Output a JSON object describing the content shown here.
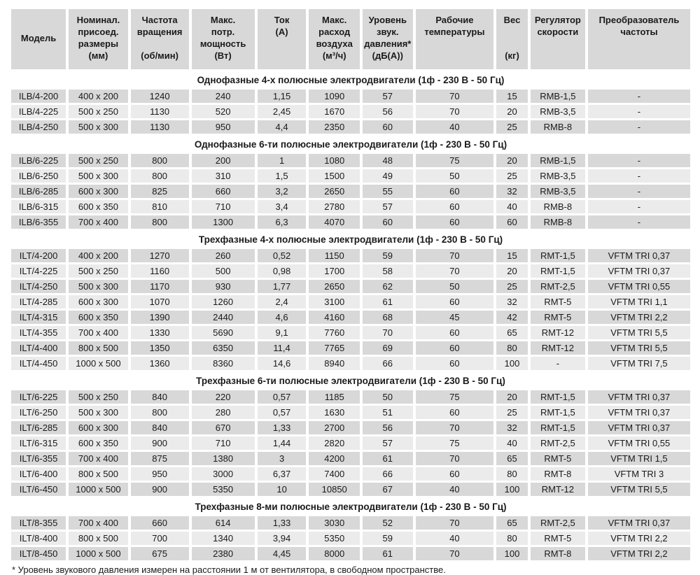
{
  "colors": {
    "header_bg": "#d8d8d8",
    "row_odd_bg": "#d8d8d8",
    "row_even_bg": "#ebebeb",
    "section_bg": "#ffffff",
    "text": "#1a1a1a"
  },
  "table": {
    "columns": [
      {
        "id": "model",
        "header": "Модель"
      },
      {
        "id": "dims",
        "header": "Номинал.\nприсоед.\nразмеры\n(мм)"
      },
      {
        "id": "rpm",
        "header": "Частота\nвращения\n\n(об/мин)"
      },
      {
        "id": "power",
        "header": "Макс.\nпотр.\nмощность\n(Вт)"
      },
      {
        "id": "current",
        "header": "Ток\n(А)"
      },
      {
        "id": "airflow",
        "header": "Макс.\nрасход\nвоздуха\n(м³/ч)"
      },
      {
        "id": "sound",
        "header": "Уровень\nзвук.\nдавления*\n(дБ(А))"
      },
      {
        "id": "temp",
        "header": "Рабочие\nтемпературы"
      },
      {
        "id": "weight",
        "header": "Вес\n\n\n(кг)"
      },
      {
        "id": "regulator",
        "header": "Регулятор\nскорости"
      },
      {
        "id": "converter",
        "header": "Преобразователь\nчастоты"
      }
    ],
    "sections": [
      {
        "title": "Однофазные 4-х полюсные электродвигатели (1ф - 230 В - 50 Гц)",
        "rows": [
          [
            "ILB/4-200",
            "400 x 200",
            "1240",
            "240",
            "1,15",
            "1090",
            "57",
            "70",
            "15",
            "RMB-1,5",
            "-"
          ],
          [
            "ILB/4-225",
            "500 x 250",
            "1130",
            "520",
            "2,45",
            "1670",
            "56",
            "70",
            "20",
            "RMB-3,5",
            "-"
          ],
          [
            "ILB/4-250",
            "500 x 300",
            "1130",
            "950",
            "4,4",
            "2350",
            "60",
            "40",
            "25",
            "RMB-8",
            "-"
          ]
        ]
      },
      {
        "title": "Однофазные 6-ти полюсные электродвигатели (1ф - 230 В - 50 Гц)",
        "rows": [
          [
            "ILB/6-225",
            "500 x 250",
            "800",
            "200",
            "1",
            "1080",
            "48",
            "75",
            "20",
            "RMB-1,5",
            "-"
          ],
          [
            "ILB/6-250",
            "500 x 300",
            "800",
            "310",
            "1,5",
            "1500",
            "49",
            "50",
            "25",
            "RMB-3,5",
            "-"
          ],
          [
            "ILB/6-285",
            "600 x 300",
            "825",
            "660",
            "3,2",
            "2650",
            "55",
            "60",
            "32",
            "RMB-3,5",
            "-"
          ],
          [
            "ILB/6-315",
            "600 x 350",
            "810",
            "710",
            "3,4",
            "2780",
            "57",
            "60",
            "40",
            "RMB-8",
            "-"
          ],
          [
            "ILB/6-355",
            "700 x 400",
            "800",
            "1300",
            "6,3",
            "4070",
            "60",
            "60",
            "60",
            "RMB-8",
            "-"
          ]
        ]
      },
      {
        "title": "Трехфазные 4-х полюсные электродвигатели (1ф - 230 В - 50 Гц)",
        "rows": [
          [
            "ILT/4-200",
            "400 x 200",
            "1270",
            "260",
            "0,52",
            "1150",
            "59",
            "70",
            "15",
            "RMT-1,5",
            "VFTM TRI 0,37"
          ],
          [
            "ILT/4-225",
            "500 x 250",
            "1160",
            "500",
            "0,98",
            "1700",
            "58",
            "70",
            "20",
            "RMT-1,5",
            "VFTM TRI 0,37"
          ],
          [
            "ILT/4-250",
            "500 x 300",
            "1170",
            "930",
            "1,77",
            "2650",
            "62",
            "50",
            "25",
            "RMT-2,5",
            "VFTM TRI 0,55"
          ],
          [
            "ILT/4-285",
            "600 x 300",
            "1070",
            "1260",
            "2,4",
            "3100",
            "61",
            "60",
            "32",
            "RMT-5",
            "VFTM TRI 1,1"
          ],
          [
            "ILT/4-315",
            "600 x 350",
            "1390",
            "2440",
            "4,6",
            "4160",
            "68",
            "45",
            "42",
            "RMT-5",
            "VFTM TRI 2,2"
          ],
          [
            "ILT/4-355",
            "700 x 400",
            "1330",
            "5690",
            "9,1",
            "7760",
            "70",
            "60",
            "65",
            "RMT-12",
            "VFTM TRI 5,5"
          ],
          [
            "ILT/4-400",
            "800 x 500",
            "1350",
            "6350",
            "11,4",
            "7765",
            "69",
            "60",
            "80",
            "RMT-12",
            "VFTM TRI 5,5"
          ],
          [
            "ILT/4-450",
            "1000 x 500",
            "1360",
            "8360",
            "14,6",
            "8940",
            "66",
            "60",
            "100",
            "-",
            "VFTM TRI 7,5"
          ]
        ]
      },
      {
        "title": "Трехфазные 6-ти полюсные электродвигатели (1ф - 230 В - 50 Гц)",
        "rows": [
          [
            "ILT/6-225",
            "500 x 250",
            "840",
            "220",
            "0,57",
            "1185",
            "50",
            "75",
            "20",
            "RMT-1,5",
            "VFTM TRI 0,37"
          ],
          [
            "ILT/6-250",
            "500 x 300",
            "800",
            "280",
            "0,57",
            "1630",
            "51",
            "60",
            "25",
            "RMT-1,5",
            "VFTM TRI 0,37"
          ],
          [
            "ILT/6-285",
            "600 x 300",
            "840",
            "670",
            "1,33",
            "2700",
            "56",
            "70",
            "32",
            "RMT-1,5",
            "VFTM TRI 0,37"
          ],
          [
            "ILT/6-315",
            "600 x 350",
            "900",
            "710",
            "1,44",
            "2820",
            "57",
            "75",
            "40",
            "RMT-2,5",
            "VFTM TRI 0,55"
          ],
          [
            "ILT/6-355",
            "700 x 400",
            "875",
            "1380",
            "3",
            "4200",
            "61",
            "70",
            "65",
            "RMT-5",
            "VFTM TRI 1,5"
          ],
          [
            "ILT/6-400",
            "800 x 500",
            "950",
            "3000",
            "6,37",
            "7400",
            "66",
            "60",
            "80",
            "RMT-8",
            "VFTM TRI 3"
          ],
          [
            "ILT/6-450",
            "1000 x 500",
            "900",
            "5350",
            "10",
            "10850",
            "67",
            "40",
            "100",
            "RMT-12",
            "VFTM TRI 5,5"
          ]
        ]
      },
      {
        "title": "Трехфазные 8-ми полюсные электродвигатели (1ф - 230 В - 50 Гц)",
        "rows": [
          [
            "ILT/8-355",
            "700 x 400",
            "660",
            "614",
            "1,33",
            "3030",
            "52",
            "70",
            "65",
            "RMT-2,5",
            "VFTM TRI 0,37"
          ],
          [
            "ILT/8-400",
            "800 x 500",
            "700",
            "1340",
            "3,94",
            "5350",
            "59",
            "40",
            "80",
            "RMT-5",
            "VFTM TRI 2,2"
          ],
          [
            "ILT/8-450",
            "1000 x 500",
            "675",
            "2380",
            "4,45",
            "8000",
            "61",
            "70",
            "100",
            "RMT-8",
            "VFTM TRI 2,2"
          ]
        ]
      }
    ],
    "footnote": "* Уровень звукового давления измерен на расстоянии 1 м от вентилятора, в свободном пространстве."
  }
}
